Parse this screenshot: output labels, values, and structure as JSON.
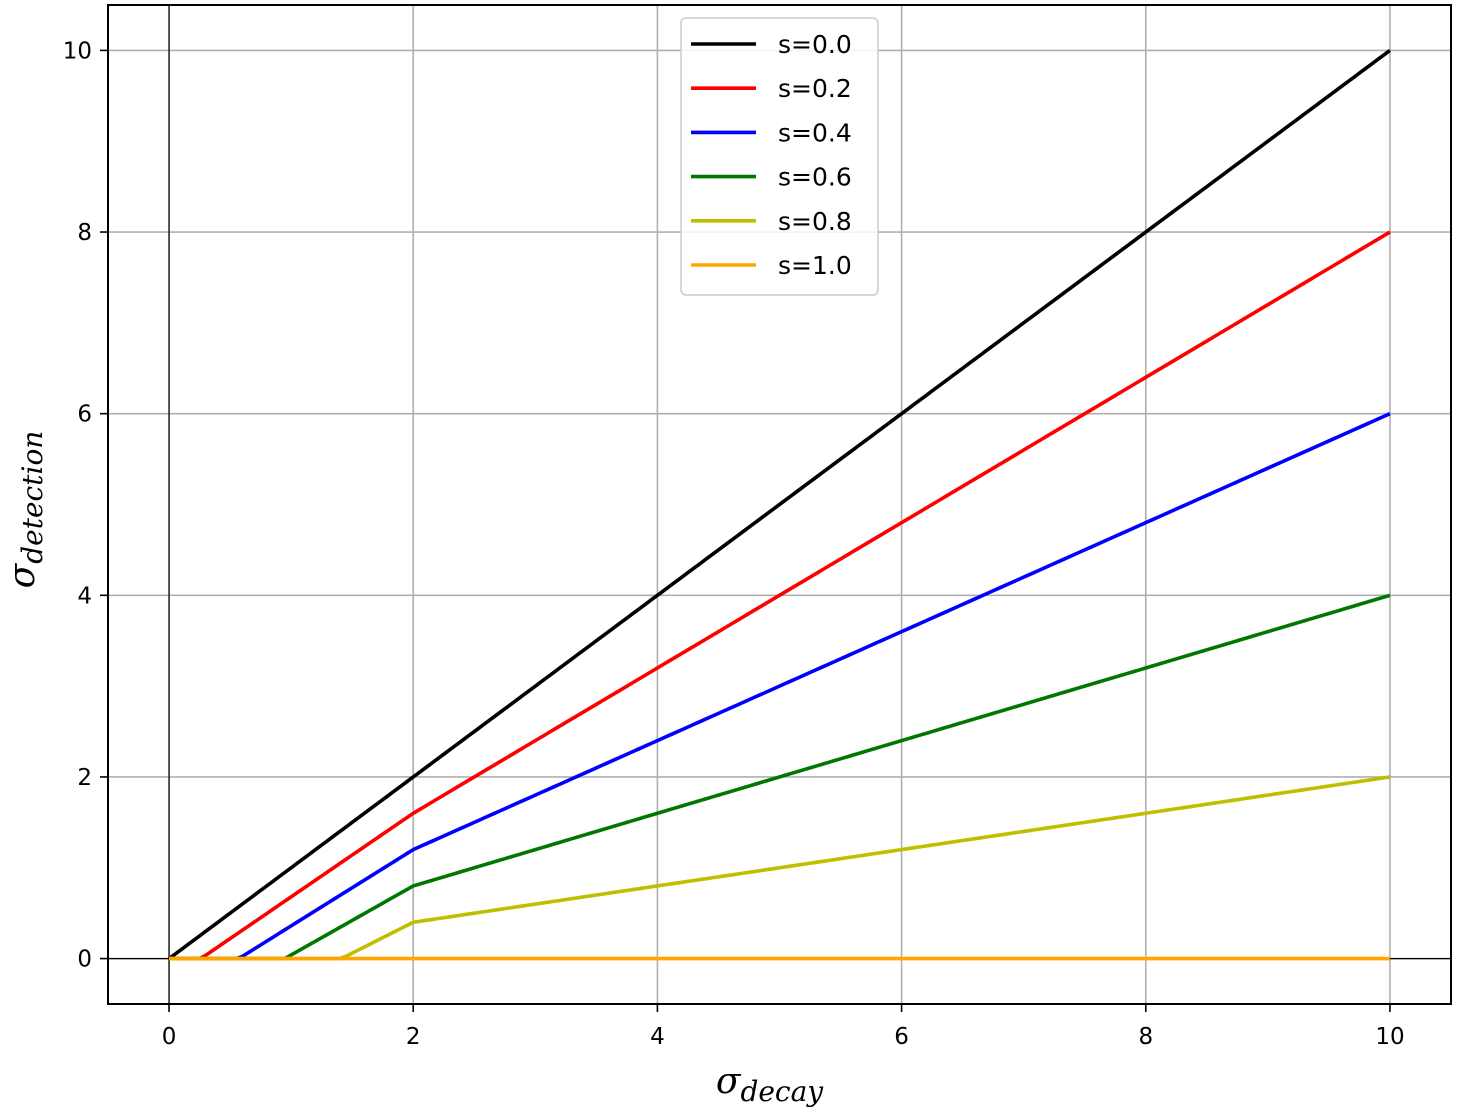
{
  "chart_data": {
    "type": "line",
    "xlabel": {
      "symbol": "σ",
      "subscript": "decay"
    },
    "ylabel": {
      "symbol": "σ",
      "subscript": "detection"
    },
    "xlim": [
      -0.5,
      10.5
    ],
    "ylim": [
      -0.5,
      10.5
    ],
    "xticks": [
      0,
      2,
      4,
      6,
      8,
      10
    ],
    "yticks": [
      0,
      2,
      4,
      6,
      8,
      10
    ],
    "xtick_labels": [
      "0",
      "2",
      "4",
      "6",
      "8",
      "10"
    ],
    "ytick_labels": [
      "0",
      "2",
      "4",
      "6",
      "8",
      "10"
    ],
    "grid": true,
    "reference_lines": {
      "x": 0,
      "y": 0
    },
    "legend_position": "upper center",
    "x_range": [
      0,
      10
    ],
    "series": [
      {
        "name": "s=0.0",
        "s": 0.0,
        "color": "#000000"
      },
      {
        "name": "s=0.2",
        "s": 0.2,
        "color": "#ff0000"
      },
      {
        "name": "s=0.4",
        "s": 0.4,
        "color": "#0000ff"
      },
      {
        "name": "s=0.6",
        "s": 0.6,
        "color": "#007700"
      },
      {
        "name": "s=0.8",
        "s": 0.8,
        "color": "#bfbf00"
      },
      {
        "name": "s=1.0",
        "s": 1.0,
        "color": "#ffa500"
      }
    ],
    "sample_points": [
      {
        "name": "s=0.0",
        "x": [
          0,
          2,
          4,
          6,
          8,
          10
        ],
        "y": [
          0,
          2.0,
          4.0,
          6.0,
          8.0,
          10.0
        ]
      },
      {
        "name": "s=0.2",
        "x": [
          0.18,
          2,
          4,
          6,
          8,
          10
        ],
        "y": [
          0,
          1.58,
          3.2,
          4.8,
          6.4,
          8.0
        ]
      },
      {
        "name": "s=0.4",
        "x": [
          0.37,
          2,
          4,
          6,
          8,
          10
        ],
        "y": [
          0,
          1.15,
          2.4,
          3.6,
          4.8,
          6.0
        ]
      },
      {
        "name": "s=0.6",
        "x": [
          0.64,
          2,
          4,
          6,
          8,
          10
        ],
        "y": [
          0,
          0.73,
          1.58,
          2.4,
          3.2,
          4.0
        ]
      },
      {
        "name": "s=0.8",
        "x": [
          1.12,
          2,
          4,
          6,
          8,
          10
        ],
        "y": [
          0,
          0.3,
          0.8,
          1.2,
          1.6,
          2.0
        ]
      },
      {
        "name": "s=1.0",
        "x": [
          0,
          2,
          4,
          6,
          8,
          10
        ],
        "y": [
          0,
          0,
          0,
          0,
          0,
          0
        ]
      }
    ]
  }
}
